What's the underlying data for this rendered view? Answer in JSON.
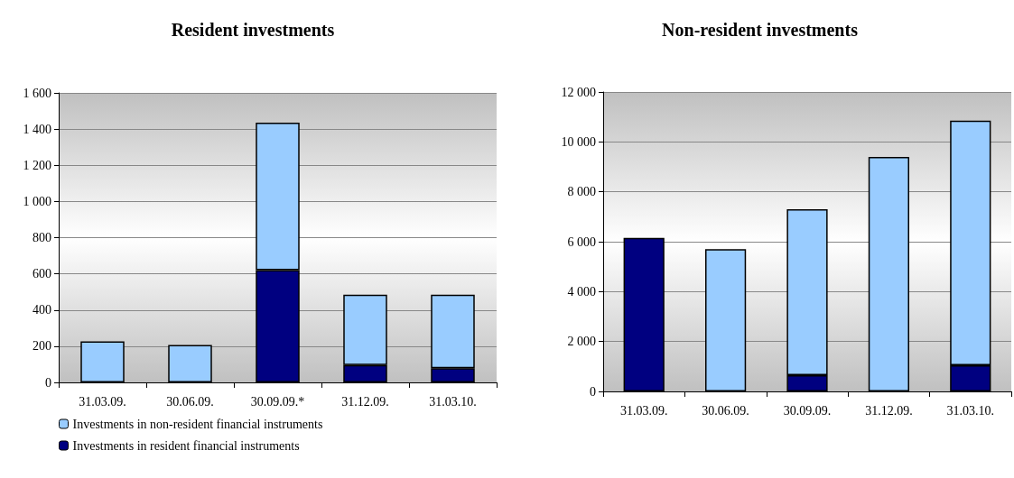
{
  "chart_data": [
    {
      "type": "bar",
      "title": "Resident investments",
      "categories": [
        "31.03.09.",
        "30.06.09.",
        "30.09.09.*",
        "31.12.09.",
        "31.03.10."
      ],
      "stacked": true,
      "series": [
        {
          "name": "Investments in resident financial instruments",
          "color": "#000080",
          "values": [
            null,
            null,
            621,
            96,
            78
          ]
        },
        {
          "name": "Investments in non-resident financial instruments",
          "color": "#99ccff",
          "values": [
            227,
            207,
            815,
            389,
            407
          ]
        }
      ],
      "ylim": [
        0,
        1600
      ],
      "yticks": [
        0,
        200,
        400,
        600,
        800,
        {
          "value": 1000,
          "label": "1 000"
        },
        {
          "value": 1200,
          "label": "1 200"
        },
        {
          "value": 1400,
          "label": "1 400"
        },
        {
          "value": 1600,
          "label": "1 600"
        }
      ],
      "grid": "y",
      "legend": "bottom"
    },
    {
      "type": "bar",
      "title": "Non-resident investments",
      "categories": [
        "31.03.09.",
        "30.06.09.",
        "30.09.09.",
        "31.12.09.",
        "31.03.10."
      ],
      "stacked": true,
      "series": [
        {
          "color": "#000080",
          "values": [
            6150,
            null,
            650,
            null,
            1050
          ]
        },
        {
          "color": "#99ccff",
          "values": [
            null,
            5700,
            6650,
            9400,
            9800
          ]
        }
      ],
      "ylim": [
        0,
        12000
      ],
      "yticks": [
        0,
        {
          "value": 2000,
          "label": "2 000"
        },
        {
          "value": 4000,
          "label": "4 000"
        },
        {
          "value": 6000,
          "label": "6 000"
        },
        {
          "value": 8000,
          "label": "8 000"
        },
        {
          "value": 10000,
          "label": "10 000"
        },
        {
          "value": 12000,
          "label": "12 000"
        }
      ],
      "grid": "y",
      "legend": false
    }
  ]
}
